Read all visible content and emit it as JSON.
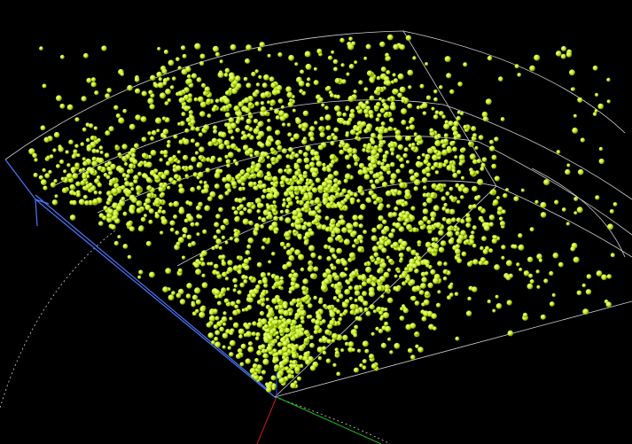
{
  "scene": {
    "background": "#000000",
    "colors": {
      "points": "#c8f020",
      "point_highlight": "#f2ffb0",
      "point_shadow": "#6f8f00",
      "wireframe": "#cfcfd6",
      "survey_edge": "#4a78ff",
      "axis_x": "#d01818",
      "axis_y": "#18c018",
      "axis_z": "#2a5cff"
    },
    "icons": {
      "points": "sphere-icon",
      "axis": "axis-triad-icon"
    },
    "description_shown_as_text": false
  }
}
